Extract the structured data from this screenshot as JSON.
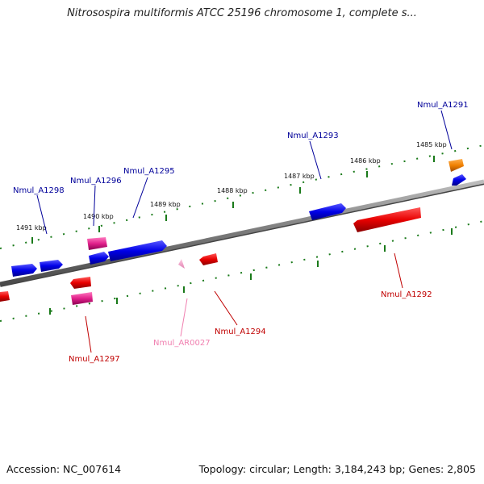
{
  "title": "Nitrosospira multiformis ATCC 25196 chromosome 1, complete s...",
  "footer": {
    "accession": "Accession: NC_007614",
    "topology": "Topology: circular; Length: 3,184,243 bp; Genes: 2,805"
  },
  "colors": {
    "backbone": "#8c8c8c",
    "tick": "#1a7a1a",
    "blue_gene": "#0000e0",
    "red_gene": "#e00000",
    "pink_gene": "#e0208a",
    "orange_gene": "#f08000",
    "rna_gene": "#f0a0c8",
    "blue_label": "#00009a",
    "red_label": "#c00000",
    "rna_label": "#f080b0"
  },
  "kbp_labels": [
    "1485 kbp",
    "1486 kbp",
    "1487 kbp",
    "1488 kbp",
    "1489 kbp",
    "1490 kbp",
    "1491 kbp"
  ],
  "gene_labels": [
    "Nmul_A1291",
    "Nmul_A1293",
    "Nmul_A1295",
    "Nmul_A1296",
    "Nmul_A1298",
    "Nmul_A1292",
    "Nmul_A1294",
    "Nmul_AR0027",
    "Nmul_A1297"
  ]
}
